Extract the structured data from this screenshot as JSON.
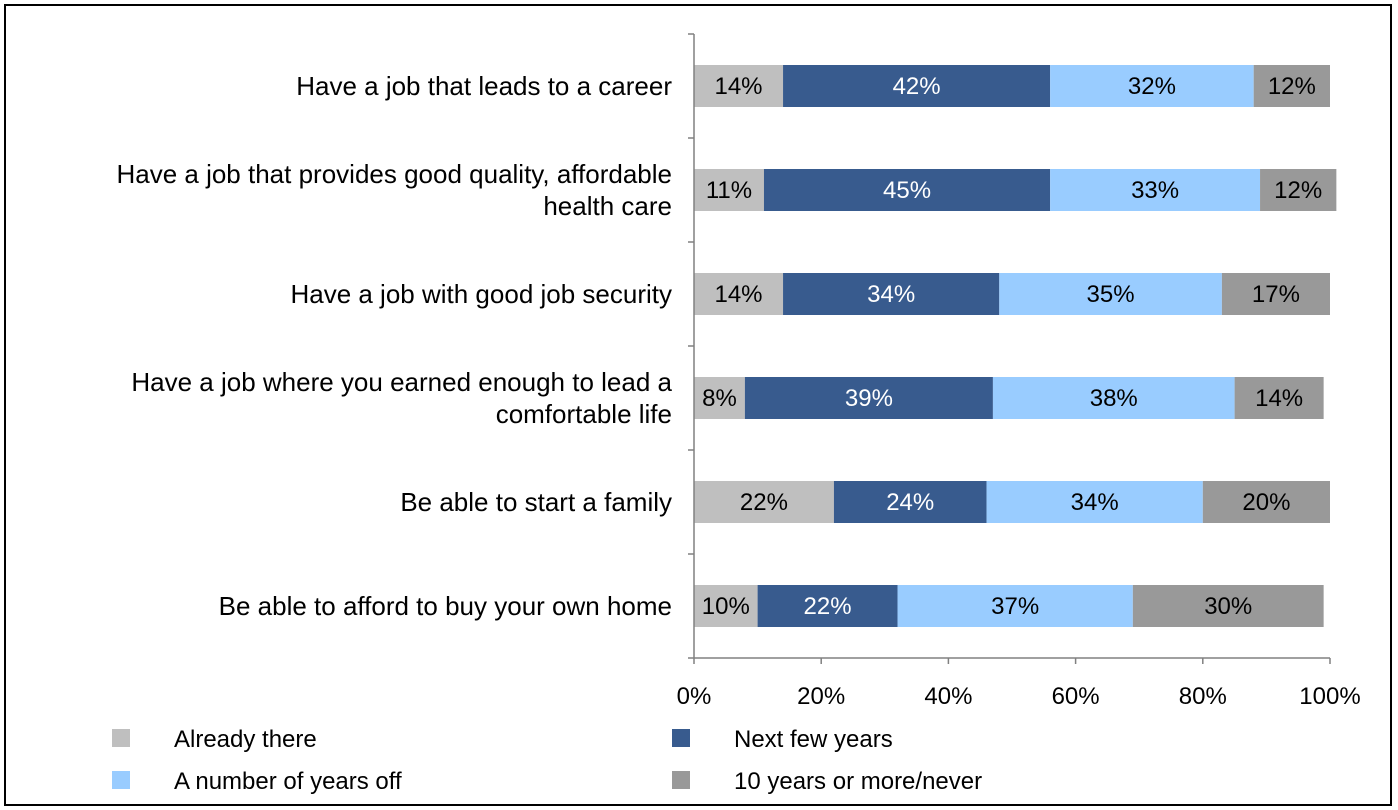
{
  "chart_data": {
    "type": "bar",
    "orientation": "horizontal",
    "stacked": true,
    "categories": [
      "Have a job that leads to a career",
      "Have a job that provides good quality, affordable health care",
      "Have a job with good job security",
      "Have a job where you earned enough to lead a comfortable life",
      "Be able to start a family",
      "Be able to afford to buy your own home"
    ],
    "series": [
      {
        "name": "Already there",
        "color": "#bfbfbf",
        "label_color": "#000000",
        "values": [
          14,
          11,
          14,
          8,
          22,
          10
        ]
      },
      {
        "name": "Next few years",
        "color": "#385b8e",
        "label_color": "#ffffff",
        "values": [
          42,
          45,
          34,
          39,
          24,
          22
        ]
      },
      {
        "name": "A number of years off",
        "color": "#99ccff",
        "label_color": "#000000",
        "values": [
          32,
          33,
          35,
          38,
          34,
          37
        ]
      },
      {
        "name": "10 years or more/never",
        "color": "#999999",
        "label_color": "#000000",
        "values": [
          12,
          12,
          17,
          14,
          20,
          30
        ]
      }
    ],
    "xlim": [
      0,
      100
    ],
    "xticks": [
      0,
      20,
      40,
      60,
      80,
      100
    ],
    "tick_suffix": "%",
    "value_suffix": "%",
    "grid": false,
    "legend_position": "bottom"
  }
}
